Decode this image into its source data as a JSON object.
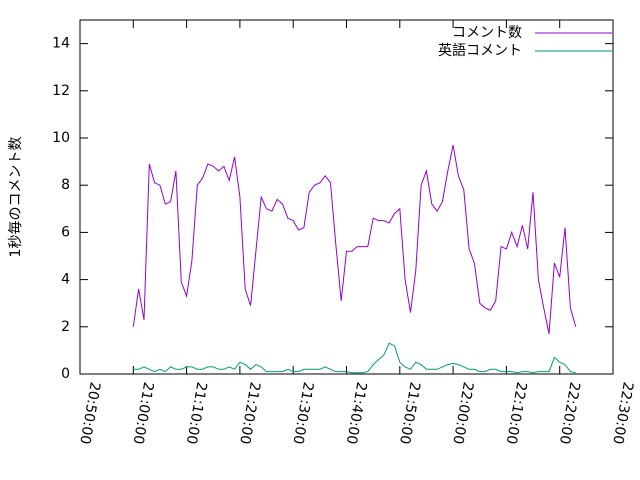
{
  "chart_data": {
    "type": "line",
    "ylabel": "1秒毎のコメント数",
    "x": [
      "21:00:00",
      "21:01:00",
      "21:02:00",
      "21:03:00",
      "21:04:00",
      "21:05:00",
      "21:06:00",
      "21:07:00",
      "21:08:00",
      "21:09:00",
      "21:10:00",
      "21:11:00",
      "21:12:00",
      "21:13:00",
      "21:14:00",
      "21:15:00",
      "21:16:00",
      "21:17:00",
      "21:18:00",
      "21:19:00",
      "21:20:00",
      "21:21:00",
      "21:22:00",
      "21:23:00",
      "21:24:00",
      "21:25:00",
      "21:26:00",
      "21:27:00",
      "21:28:00",
      "21:29:00",
      "21:30:00",
      "21:31:00",
      "21:32:00",
      "21:33:00",
      "21:34:00",
      "21:35:00",
      "21:36:00",
      "21:37:00",
      "21:38:00",
      "21:39:00",
      "21:40:00",
      "21:41:00",
      "21:42:00",
      "21:43:00",
      "21:44:00",
      "21:45:00",
      "21:46:00",
      "21:47:00",
      "21:48:00",
      "21:49:00",
      "21:50:00",
      "21:51:00",
      "21:52:00",
      "21:53:00",
      "21:54:00",
      "21:55:00",
      "21:56:00",
      "21:57:00",
      "21:58:00",
      "21:59:00",
      "22:00:00",
      "22:01:00",
      "22:02:00",
      "22:03:00",
      "22:04:00",
      "22:05:00",
      "22:06:00",
      "22:07:00",
      "22:08:00",
      "22:09:00",
      "22:10:00",
      "22:11:00",
      "22:12:00",
      "22:13:00",
      "22:14:00",
      "22:15:00",
      "22:16:00",
      "22:17:00",
      "22:18:00",
      "22:19:00",
      "22:20:00",
      "22:21:00",
      "22:22:00",
      "22:23:00"
    ],
    "series": [
      {
        "name": "コメント数",
        "color": "#9400d3",
        "values": [
          2.0,
          3.6,
          2.3,
          8.9,
          8.1,
          8.0,
          7.2,
          7.3,
          8.6,
          3.9,
          3.3,
          4.8,
          8.0,
          8.3,
          8.9,
          8.8,
          8.6,
          8.8,
          8.2,
          9.2,
          7.5,
          3.6,
          2.9,
          5.2,
          7.5,
          7.0,
          6.9,
          7.4,
          7.2,
          6.6,
          6.5,
          6.1,
          6.2,
          7.7,
          8.0,
          8.1,
          8.4,
          8.1,
          5.5,
          3.1,
          5.2,
          5.2,
          5.4,
          5.4,
          5.4,
          6.6,
          6.5,
          6.5,
          6.4,
          6.8,
          7.0,
          4.0,
          2.6,
          4.4,
          8.0,
          8.6,
          7.2,
          6.9,
          7.3,
          8.6,
          9.7,
          8.4,
          7.8,
          5.3,
          4.7,
          3.0,
          2.8,
          2.7,
          3.1,
          5.4,
          5.3,
          6.0,
          5.4,
          6.3,
          5.3,
          7.7,
          4.0,
          2.8,
          1.7,
          4.7,
          4.1,
          6.2,
          2.8,
          2.0
        ]
      },
      {
        "name": "英語コメント",
        "color": "#009e73",
        "values": [
          0.2,
          0.2,
          0.3,
          0.2,
          0.1,
          0.2,
          0.1,
          0.3,
          0.2,
          0.2,
          0.3,
          0.3,
          0.2,
          0.2,
          0.3,
          0.3,
          0.2,
          0.2,
          0.3,
          0.2,
          0.5,
          0.4,
          0.2,
          0.4,
          0.3,
          0.1,
          0.1,
          0.1,
          0.1,
          0.2,
          0.1,
          0.1,
          0.2,
          0.2,
          0.2,
          0.2,
          0.3,
          0.2,
          0.1,
          0.1,
          0.1,
          0.05,
          0.05,
          0.05,
          0.1,
          0.4,
          0.6,
          0.8,
          1.3,
          1.2,
          0.5,
          0.3,
          0.2,
          0.5,
          0.4,
          0.2,
          0.2,
          0.2,
          0.3,
          0.4,
          0.45,
          0.4,
          0.3,
          0.2,
          0.2,
          0.1,
          0.1,
          0.2,
          0.2,
          0.1,
          0.1,
          0.1,
          0.05,
          0.1,
          0.1,
          0.05,
          0.1,
          0.1,
          0.1,
          0.7,
          0.5,
          0.4,
          0.1,
          0.05
        ]
      }
    ],
    "xlim": [
      "20:50:00",
      "22:30:00"
    ],
    "xticks": [
      "20:50:00",
      "21:00:00",
      "21:10:00",
      "21:20:00",
      "21:30:00",
      "21:40:00",
      "21:50:00",
      "22:00:00",
      "22:10:00",
      "22:20:00",
      "22:30:00"
    ],
    "ylim": [
      0,
      15
    ],
    "yticks": [
      0,
      2,
      4,
      6,
      8,
      10,
      12,
      14
    ],
    "legend": "top-right"
  }
}
